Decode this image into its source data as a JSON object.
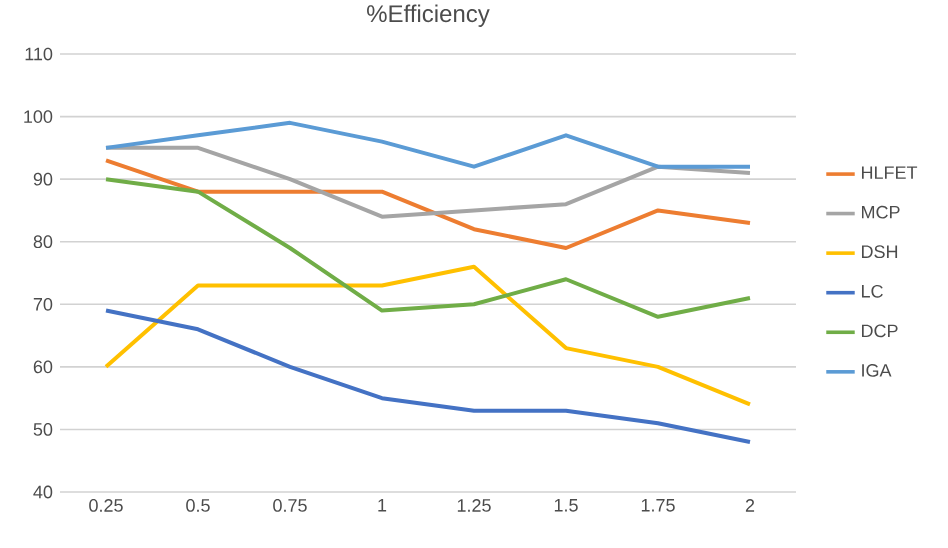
{
  "chart_data": {
    "type": "line",
    "title": "%Efficiency",
    "categories": [
      "0.25",
      "0.5",
      "0.75",
      "1",
      "1.25",
      "1.5",
      "1.75",
      "2"
    ],
    "series": [
      {
        "name": "HLFET",
        "color": "#ed7d31",
        "values": [
          93,
          88,
          88,
          88,
          82,
          79,
          85,
          83
        ]
      },
      {
        "name": "MCP",
        "color": "#a5a5a5",
        "values": [
          95,
          95,
          90,
          84,
          85,
          86,
          92,
          91
        ]
      },
      {
        "name": "DSH",
        "color": "#ffc000",
        "values": [
          60,
          73,
          73,
          73,
          76,
          63,
          60,
          54
        ]
      },
      {
        "name": "LC",
        "color": "#4472c4",
        "values": [
          69,
          66,
          60,
          55,
          53,
          53,
          51,
          48
        ]
      },
      {
        "name": "DCP",
        "color": "#70ad47",
        "values": [
          90,
          88,
          79,
          69,
          70,
          74,
          68,
          71
        ]
      },
      {
        "name": "IGA",
        "color": "#5b9bd5",
        "values": [
          95,
          97,
          99,
          96,
          92,
          97,
          92,
          92
        ]
      }
    ],
    "ylim": [
      40,
      110
    ],
    "yticks": [
      40,
      50,
      60,
      70,
      80,
      90,
      100,
      110
    ],
    "grid": "y",
    "legend": "right"
  }
}
